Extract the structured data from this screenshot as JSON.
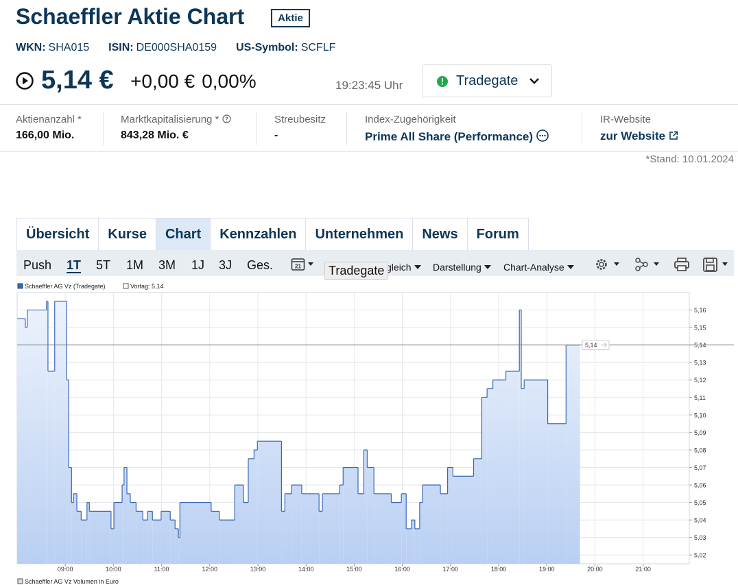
{
  "header": {
    "title": "Schaeffler Aktie Chart",
    "badge": "Aktie",
    "ids": [
      {
        "label": "WKN:",
        "value": "SHA015"
      },
      {
        "label": "ISIN:",
        "value": "DE000SHA0159"
      },
      {
        "label": "US-Symbol:",
        "value": "SCFLF"
      }
    ],
    "price": "5,14 €",
    "change": "+0,00 €",
    "change_pct": "0,00%",
    "time": "19:23:45 Uhr",
    "exchange": "Tradegate"
  },
  "stats": [
    {
      "label": "Aktienanzahl *",
      "value": "166,00 Mio."
    },
    {
      "label": "Marktkapitalisierung *",
      "value": "843,28 Mio. €"
    },
    {
      "label": "Streubesitz",
      "value": "-"
    },
    {
      "label": "Index-Zugehörigkeit",
      "value": "Prime All Share (Performance)"
    },
    {
      "label": "IR-Website",
      "value": "zur Website"
    }
  ],
  "stand": "*Stand: 10.01.2024",
  "tabs": [
    "Übersicht",
    "Kurse",
    "Chart",
    "Kennzahlen",
    "Unternehmen",
    "News",
    "Forum"
  ],
  "active_tab": 2,
  "toolbar": {
    "ranges": [
      "Push",
      "1T",
      "5T",
      "1M",
      "3M",
      "1J",
      "3J",
      "Ges."
    ],
    "active_range": 1,
    "calendar_day": "21",
    "menus": [
      "Vergleich",
      "Darstellung",
      "Chart-Analyse"
    ],
    "tooltip": "Tradegate"
  },
  "chart_data": {
    "type": "line",
    "step": true,
    "series": [
      {
        "name": "Schaeffler AG Vz (Tradegate)",
        "color": "#3a67b5",
        "x": [
          8.0,
          8.17,
          8.21,
          8.61,
          8.64,
          8.78,
          9.03,
          9.07,
          9.13,
          9.17,
          9.24,
          9.33,
          9.45,
          9.5,
          9.95,
          10.01,
          10.18,
          10.22,
          10.28,
          10.35,
          10.47,
          10.61,
          10.71,
          10.81,
          10.99,
          11.18,
          11.28,
          11.35,
          11.38,
          12.03,
          12.2,
          12.52,
          12.7,
          12.8,
          12.92,
          12.99,
          13.49,
          13.56,
          13.7,
          13.91,
          14.27,
          14.34,
          14.7,
          14.77,
          15.08,
          15.2,
          15.27,
          15.41,
          15.77,
          15.98,
          16.08,
          16.19,
          16.26,
          16.36,
          16.42,
          16.79,
          16.94,
          17.05,
          17.48,
          17.65,
          17.76,
          17.88,
          18.15,
          18.43,
          18.47,
          18.53,
          19.02,
          19.4,
          19.69
        ],
        "values": [
          5.155,
          5.15,
          5.16,
          5.165,
          5.125,
          5.165,
          5.12,
          5.07,
          5.05,
          5.055,
          5.045,
          5.04,
          5.05,
          5.045,
          5.035,
          5.05,
          5.06,
          5.07,
          5.055,
          5.05,
          5.045,
          5.04,
          5.045,
          5.04,
          5.045,
          5.04,
          5.035,
          5.03,
          5.05,
          5.045,
          5.04,
          5.06,
          5.05,
          5.075,
          5.08,
          5.085,
          5.045,
          5.055,
          5.06,
          5.055,
          5.045,
          5.055,
          5.06,
          5.07,
          5.055,
          5.08,
          5.07,
          5.055,
          5.05,
          5.055,
          5.035,
          5.04,
          5.035,
          5.05,
          5.06,
          5.055,
          5.07,
          5.065,
          5.075,
          5.11,
          5.115,
          5.12,
          5.125,
          5.16,
          5.115,
          5.12,
          5.095,
          5.14,
          5.14
        ]
      }
    ],
    "reference_line": {
      "name": "Vortag: 5,14",
      "value": 5.14,
      "value_label": "5,14",
      "color": "#777777"
    },
    "xlim": [
      8,
      21.96
    ],
    "xticks": [
      {
        "value": 9,
        "label": "09:00"
      },
      {
        "value": 10,
        "label": "10:00"
      },
      {
        "value": 11,
        "label": "11:00"
      },
      {
        "value": 12,
        "label": "12:00"
      },
      {
        "value": 13,
        "label": "13:00"
      },
      {
        "value": 14,
        "label": "14:00"
      },
      {
        "value": 15,
        "label": "15:00"
      },
      {
        "value": 16,
        "label": "16:00"
      },
      {
        "value": 17,
        "label": "17:00"
      },
      {
        "value": 18,
        "label": "18:00"
      },
      {
        "value": 19,
        "label": "19:00"
      },
      {
        "value": 20,
        "label": "20:00"
      },
      {
        "value": 21,
        "label": "21:00"
      }
    ],
    "ylim": [
      5.015,
      5.17
    ],
    "yticks": [
      {
        "value": 5.02,
        "label": "5,02"
      },
      {
        "value": 5.03,
        "label": "5,03"
      },
      {
        "value": 5.04,
        "label": "5,04"
      },
      {
        "value": 5.05,
        "label": "5,05"
      },
      {
        "value": 5.06,
        "label": "5,06"
      },
      {
        "value": 5.07,
        "label": "5,07"
      },
      {
        "value": 5.08,
        "label": "5,08"
      },
      {
        "value": 5.09,
        "label": "5,09"
      },
      {
        "value": 5.1,
        "label": "5,10"
      },
      {
        "value": 5.11,
        "label": "5,11"
      },
      {
        "value": 5.12,
        "label": "5,12"
      },
      {
        "value": 5.13,
        "label": "5,13"
      },
      {
        "value": 5.14,
        "label": "5,14"
      },
      {
        "value": 5.15,
        "label": "5,15"
      },
      {
        "value": 5.16,
        "label": "5,16"
      }
    ],
    "grid": true,
    "volume_legend": "Schaeffler AG Vz Volumen in Euro"
  }
}
